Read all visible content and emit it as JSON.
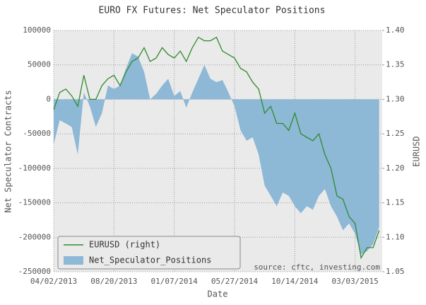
{
  "chart_data": {
    "type": "area",
    "title": "EURO FX Futures: Net Speculator Positions",
    "xlabel": "Date",
    "ylabel": "Net Speculator Contracts",
    "y2label": "EURUSD",
    "annotation": "source: cftc, investing.com",
    "grid": true,
    "legend": "lower left",
    "x": [
      "04/02/2013",
      "04/16/2013",
      "04/30/2013",
      "05/14/2013",
      "05/28/2013",
      "06/11/2013",
      "06/25/2013",
      "07/09/2013",
      "07/23/2013",
      "08/06/2013",
      "08/20/2013",
      "09/03/2013",
      "09/17/2013",
      "10/01/2013",
      "10/15/2013",
      "10/29/2013",
      "11/12/2013",
      "11/26/2013",
      "12/10/2013",
      "12/24/2013",
      "01/07/2014",
      "01/21/2014",
      "02/04/2014",
      "02/18/2014",
      "03/04/2014",
      "03/18/2014",
      "04/01/2014",
      "04/15/2014",
      "04/29/2014",
      "05/13/2014",
      "05/27/2014",
      "06/10/2014",
      "06/24/2014",
      "07/08/2014",
      "07/22/2014",
      "08/05/2014",
      "08/19/2014",
      "09/02/2014",
      "09/16/2014",
      "09/30/2014",
      "10/14/2014",
      "10/28/2014",
      "11/11/2014",
      "11/25/2014",
      "12/09/2014",
      "12/23/2014",
      "01/06/2015",
      "01/20/2015",
      "02/03/2015",
      "02/17/2015",
      "03/03/2015",
      "03/17/2015",
      "03/31/2015",
      "04/14/2015",
      "04/28/2015"
    ],
    "xlim": [
      "04/02/2013",
      "05/05/2015"
    ],
    "xticks": [
      "04/02/2013",
      "08/20/2013",
      "01/07/2014",
      "05/27/2014",
      "10/14/2014",
      "03/03/2015"
    ],
    "ylim": [
      -250000,
      100000
    ],
    "yticks": [
      -250000,
      -200000,
      -150000,
      -100000,
      -50000,
      0,
      50000,
      100000
    ],
    "y2lim": [
      1.05,
      1.4
    ],
    "y2ticks": [
      1.05,
      {
        "value": 1.1,
        "label": "1.10"
      },
      1.15,
      {
        "value": 1.2,
        "label": "1.20"
      },
      1.25,
      {
        "value": 1.3,
        "label": "1.30"
      },
      1.35,
      {
        "value": 1.4,
        "label": "1.40"
      }
    ],
    "series": [
      {
        "name": "EURUSD (right)",
        "type": "line",
        "axis": "y2",
        "color": "#2e8b2e",
        "values": [
          1.285,
          1.31,
          1.315,
          1.305,
          1.29,
          1.335,
          1.3,
          1.3,
          1.32,
          1.33,
          1.335,
          1.32,
          1.34,
          1.355,
          1.36,
          1.375,
          1.355,
          1.36,
          1.375,
          1.365,
          1.36,
          1.37,
          1.355,
          1.375,
          1.39,
          1.385,
          1.385,
          1.39,
          1.37,
          1.365,
          1.36,
          1.345,
          1.34,
          1.325,
          1.315,
          1.28,
          1.29,
          1.265,
          1.265,
          1.255,
          1.28,
          1.25,
          1.245,
          1.24,
          1.25,
          1.22,
          1.2,
          1.16,
          1.155,
          1.13,
          1.12,
          1.07,
          1.085,
          1.085,
          1.11
        ]
      },
      {
        "name": "Net_Speculator_Positions",
        "type": "area",
        "color": "#8db8d6",
        "values": [
          -65000,
          -30000,
          -35000,
          -40000,
          -80000,
          10000,
          -10000,
          -40000,
          -20000,
          20000,
          15000,
          20000,
          45000,
          67000,
          62000,
          40000,
          0,
          8000,
          20000,
          30000,
          5000,
          12000,
          -12000,
          10000,
          30000,
          50000,
          30000,
          25000,
          28000,
          10000,
          -10000,
          -45000,
          -60000,
          -55000,
          -80000,
          -125000,
          -140000,
          -155000,
          -135000,
          -140000,
          -155000,
          -165000,
          -155000,
          -160000,
          -140000,
          -130000,
          -155000,
          -170000,
          -190000,
          -180000,
          -195000,
          -225000,
          -220000,
          -210000,
          -185000
        ]
      }
    ]
  }
}
